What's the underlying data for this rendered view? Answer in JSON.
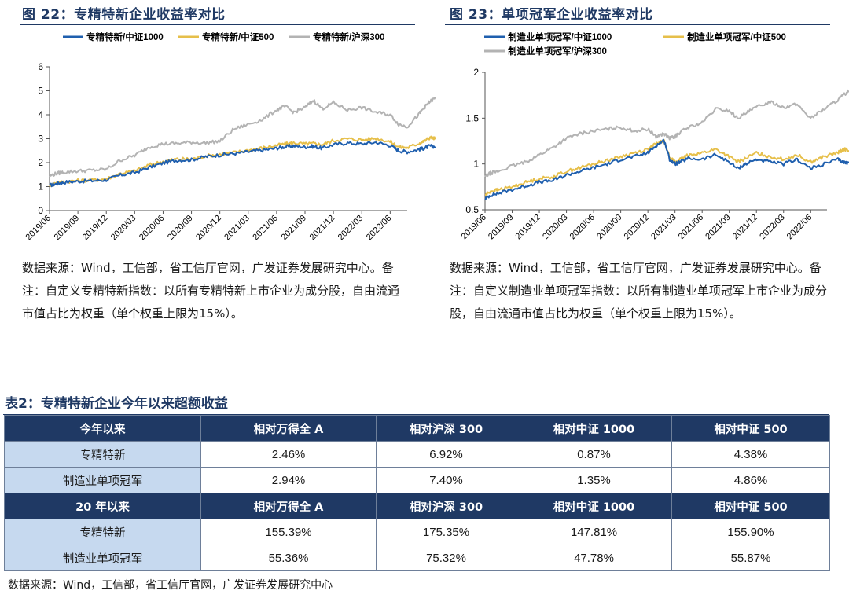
{
  "figure_left": {
    "title": "图 22：专精特新企业收益率对比",
    "note": "数据来源：Wind，工信部，省工信厅官网，广发证券发展研究中心。备注：自定义专精特新指数：以所有专精特新上市企业为成分股，自由流通市值占比为权重（单个权重上限为15%）。"
  },
  "figure_right": {
    "title": "图 23：单项冠军企业收益率对比",
    "note": "数据来源：Wind，工信部，省工信厅官网，广发证券发展研究中心。备注：自定义制造业单项冠军指数：以所有制造业单项冠军上市企业为成分股，自由流通市值占比为权重（单个权重上限为15%）。"
  },
  "colors": {
    "blue": "#1f5fae",
    "yellow": "#e6bf4a",
    "gray": "#b3b3b3",
    "navy": "#1f3964",
    "light_blue": "#c6d9ef"
  },
  "chart_data": [
    {
      "type": "line",
      "title": "专精特新企业收益率对比",
      "xlabel": "",
      "ylabel": "",
      "ylim": [
        0,
        6
      ],
      "yticks": [
        "0",
        "1",
        "2",
        "3",
        "4",
        "5",
        "6"
      ],
      "xtick_labels": [
        "2019/06",
        "2019/09",
        "2019/12",
        "2020/03",
        "2020/06",
        "2020/09",
        "2020/12",
        "2021/03",
        "2021/06",
        "2021/09",
        "2021/12",
        "2022/03",
        "2022/06"
      ],
      "x": [
        0,
        0.25,
        0.5,
        1,
        1.5,
        2,
        2.5,
        3,
        3.5,
        4,
        4.5,
        5,
        5.5,
        6,
        6.5,
        7,
        7.5,
        8,
        8.3,
        8.6,
        9,
        9.3,
        9.6,
        10,
        10.5,
        11,
        11.5,
        12,
        12.3,
        12.6,
        13,
        13.2,
        13.4,
        13.6
      ],
      "series": [
        {
          "name": "专精特新/中证1000",
          "color": "#1f5fae",
          "values": [
            1.05,
            1.12,
            1.18,
            1.22,
            1.24,
            1.28,
            1.48,
            1.58,
            1.8,
            1.98,
            2.1,
            2.12,
            2.25,
            2.32,
            2.38,
            2.45,
            2.52,
            2.6,
            2.66,
            2.7,
            2.65,
            2.68,
            2.6,
            2.75,
            2.82,
            2.78,
            2.85,
            2.72,
            2.5,
            2.45,
            2.55,
            2.6,
            2.7,
            2.66
          ]
        },
        {
          "name": "专精特新/中证500",
          "color": "#e6bf4a",
          "values": [
            1.05,
            1.15,
            1.2,
            1.25,
            1.27,
            1.32,
            1.55,
            1.65,
            1.9,
            2.05,
            2.15,
            2.15,
            2.28,
            2.35,
            2.42,
            2.52,
            2.62,
            2.72,
            2.78,
            2.82,
            2.78,
            2.8,
            2.75,
            2.92,
            3.0,
            2.95,
            3.02,
            2.88,
            2.65,
            2.62,
            2.8,
            2.9,
            3.05,
            3.0
          ]
        },
        {
          "name": "专精特新/沪深300",
          "color": "#b3b3b3",
          "values": [
            1.45,
            1.55,
            1.6,
            1.65,
            1.68,
            1.72,
            2.1,
            2.3,
            2.65,
            2.78,
            2.8,
            2.85,
            2.82,
            2.9,
            3.4,
            3.6,
            3.8,
            4.2,
            4.35,
            4.1,
            4.3,
            4.6,
            4.25,
            4.5,
            4.2,
            4.3,
            4.1,
            4.0,
            3.6,
            3.5,
            4.0,
            4.3,
            4.55,
            4.7
          ]
        }
      ],
      "legend": "top"
    },
    {
      "type": "line",
      "title": "单项冠军企业收益率对比",
      "xlabel": "",
      "ylabel": "",
      "ylim": [
        0.5,
        2
      ],
      "yticks": [
        "0.5",
        "1",
        "1.5",
        "2"
      ],
      "xtick_labels": [
        "2019/06",
        "2019/09",
        "2019/12",
        "2020/03",
        "2020/06",
        "2020/09",
        "2020/12",
        "2021/03",
        "2021/06",
        "2021/09",
        "2021/12",
        "2022/03",
        "2022/06"
      ],
      "x": [
        0,
        0.2,
        0.5,
        1,
        1.5,
        2,
        2.5,
        3,
        3.5,
        4,
        4.5,
        5,
        5.5,
        6,
        6.3,
        6.6,
        6.8,
        7,
        7.2,
        7.5,
        8,
        8.5,
        9,
        9.3,
        9.6,
        10,
        10.5,
        11,
        11.5,
        12,
        12.5,
        13,
        13.2,
        13.4
      ],
      "series": [
        {
          "name": "制造业单项冠军/中证1000",
          "color": "#1f5fae",
          "values": [
            0.62,
            0.66,
            0.68,
            0.72,
            0.76,
            0.8,
            0.82,
            0.88,
            0.92,
            0.96,
            1.0,
            1.05,
            1.08,
            1.12,
            1.2,
            1.26,
            1.05,
            1.0,
            1.02,
            1.06,
            1.05,
            1.1,
            1.02,
            0.95,
            1.0,
            1.05,
            1.02,
            1.0,
            1.05,
            0.95,
            1.0,
            1.05,
            1.02,
            1.01
          ]
        },
        {
          "name": "制造业单项冠军/中证500",
          "color": "#e6bf4a",
          "values": [
            0.66,
            0.7,
            0.72,
            0.75,
            0.8,
            0.84,
            0.86,
            0.92,
            0.96,
            1.0,
            1.04,
            1.08,
            1.12,
            1.16,
            1.22,
            1.25,
            1.08,
            1.02,
            1.05,
            1.1,
            1.12,
            1.16,
            1.08,
            1.02,
            1.06,
            1.12,
            1.08,
            1.05,
            1.1,
            1.02,
            1.08,
            1.12,
            1.16,
            1.15
          ]
        },
        {
          "name": "制造业单项冠军/沪深300",
          "color": "#b3b3b3",
          "values": [
            0.86,
            0.9,
            0.92,
            0.98,
            1.02,
            1.1,
            1.18,
            1.28,
            1.33,
            1.36,
            1.38,
            1.4,
            1.36,
            1.38,
            1.3,
            1.33,
            1.28,
            1.3,
            1.35,
            1.4,
            1.45,
            1.6,
            1.58,
            1.5,
            1.55,
            1.62,
            1.68,
            1.62,
            1.65,
            1.5,
            1.6,
            1.7,
            1.75,
            1.8
          ]
        }
      ],
      "legend": "top"
    }
  ],
  "table": {
    "title": "表2：专精特新企业今年以来超额收益",
    "sections": [
      {
        "header": [
          "今年以来",
          "相对万得全 A",
          "相对沪深 300",
          "相对中证 1000",
          "相对中证 500"
        ],
        "rows": [
          {
            "label": "专精特新",
            "values": [
              "2.46%",
              "6.92%",
              "0.87%",
              "4.38%"
            ]
          },
          {
            "label": "制造业单项冠军",
            "values": [
              "2.94%",
              "7.40%",
              "1.35%",
              "4.86%"
            ]
          }
        ]
      },
      {
        "header": [
          "20 年以来",
          "相对万得全 A",
          "相对沪深 300",
          "相对中证 1000",
          "相对中证 500"
        ],
        "rows": [
          {
            "label": "专精特新",
            "values": [
              "155.39%",
              "175.35%",
              "147.81%",
              "155.90%"
            ]
          },
          {
            "label": "制造业单项冠军",
            "values": [
              "55.36%",
              "75.32%",
              "47.78%",
              "55.87%"
            ]
          }
        ]
      }
    ],
    "source": "数据来源：Wind，工信部，省工信厅官网，广发证券发展研究中心"
  }
}
